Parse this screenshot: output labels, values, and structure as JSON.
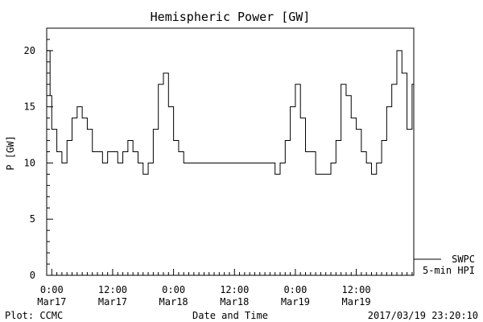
{
  "chart_data": {
    "type": "line",
    "title": "Hemispheric Power [GW]",
    "ylabel": "P [GW]",
    "xlabel": "Date and Time",
    "ylim": [
      0,
      22
    ],
    "yticks": [
      0,
      5,
      10,
      15,
      20
    ],
    "xlim": [
      "2017-03-16 23:00",
      "2017-03-19 23:20"
    ],
    "xticks": [
      {
        "t": "2017-03-17 00:00",
        "line1": "0:00",
        "line2": "Mar17"
      },
      {
        "t": "2017-03-17 12:00",
        "line1": "12:00",
        "line2": "Mar17"
      },
      {
        "t": "2017-03-18 00:00",
        "line1": "0:00",
        "line2": "Mar18"
      },
      {
        "t": "2017-03-18 12:00",
        "line1": "12:00",
        "line2": "Mar18"
      },
      {
        "t": "2017-03-19 00:00",
        "line1": "0:00",
        "line2": "Mar19"
      },
      {
        "t": "2017-03-19 12:00",
        "line1": "12:00",
        "line2": "Mar19"
      }
    ],
    "legend": {
      "position": "bottom-right",
      "entries": [
        "SWPC",
        "5-min HPI"
      ]
    },
    "series": [
      {
        "name": "SWPC",
        "x": [
          "2017-03-16 23:00",
          "2017-03-16 23:40",
          "2017-03-17 00:00",
          "2017-03-17 01:00",
          "2017-03-17 02:00",
          "2017-03-17 03:00",
          "2017-03-17 04:00",
          "2017-03-17 05:00",
          "2017-03-17 06:00",
          "2017-03-17 07:00",
          "2017-03-17 08:00",
          "2017-03-17 09:00",
          "2017-03-17 10:00",
          "2017-03-17 11:00",
          "2017-03-17 12:00",
          "2017-03-17 13:00",
          "2017-03-17 14:00",
          "2017-03-17 15:00",
          "2017-03-17 16:00",
          "2017-03-17 17:00",
          "2017-03-17 18:00",
          "2017-03-17 19:00",
          "2017-03-17 20:00",
          "2017-03-17 21:00",
          "2017-03-17 22:00",
          "2017-03-17 23:00",
          "2017-03-18 00:00",
          "2017-03-18 01:00",
          "2017-03-18 02:00",
          "2017-03-18 03:00",
          "2017-03-18 04:00",
          "2017-03-18 06:00",
          "2017-03-18 08:00",
          "2017-03-18 10:00",
          "2017-03-18 12:00",
          "2017-03-18 14:00",
          "2017-03-18 16:00",
          "2017-03-18 18:00",
          "2017-03-18 20:00",
          "2017-03-18 21:00",
          "2017-03-18 22:00",
          "2017-03-18 23:00",
          "2017-03-19 00:00",
          "2017-03-19 01:00",
          "2017-03-19 02:00",
          "2017-03-19 04:00",
          "2017-03-19 06:00",
          "2017-03-19 07:00",
          "2017-03-19 08:00",
          "2017-03-19 09:00",
          "2017-03-19 10:00",
          "2017-03-19 11:00",
          "2017-03-19 12:00",
          "2017-03-19 13:00",
          "2017-03-19 14:00",
          "2017-03-19 15:00",
          "2017-03-19 16:00",
          "2017-03-19 17:00",
          "2017-03-19 18:00",
          "2017-03-19 19:00",
          "2017-03-19 20:00",
          "2017-03-19 21:00",
          "2017-03-19 22:00",
          "2017-03-19 23:00"
        ],
        "values": [
          20,
          16,
          13,
          11,
          10,
          12,
          14,
          15,
          14,
          13,
          11,
          11,
          10,
          11,
          11,
          10,
          11,
          12,
          11,
          10,
          9,
          10,
          13,
          17,
          18,
          15,
          12,
          11,
          10,
          10,
          10,
          10,
          10,
          10,
          10,
          10,
          10,
          10,
          9,
          10,
          12,
          15,
          17,
          14,
          11,
          9,
          9,
          10,
          12,
          17,
          16,
          14,
          13,
          11,
          10,
          9,
          10,
          12,
          15,
          17,
          20,
          18,
          13,
          17
        ]
      }
    ]
  },
  "footer": {
    "plot_credit": "Plot: CCMC",
    "timestamp": "2017/03/19 23:20:10"
  }
}
